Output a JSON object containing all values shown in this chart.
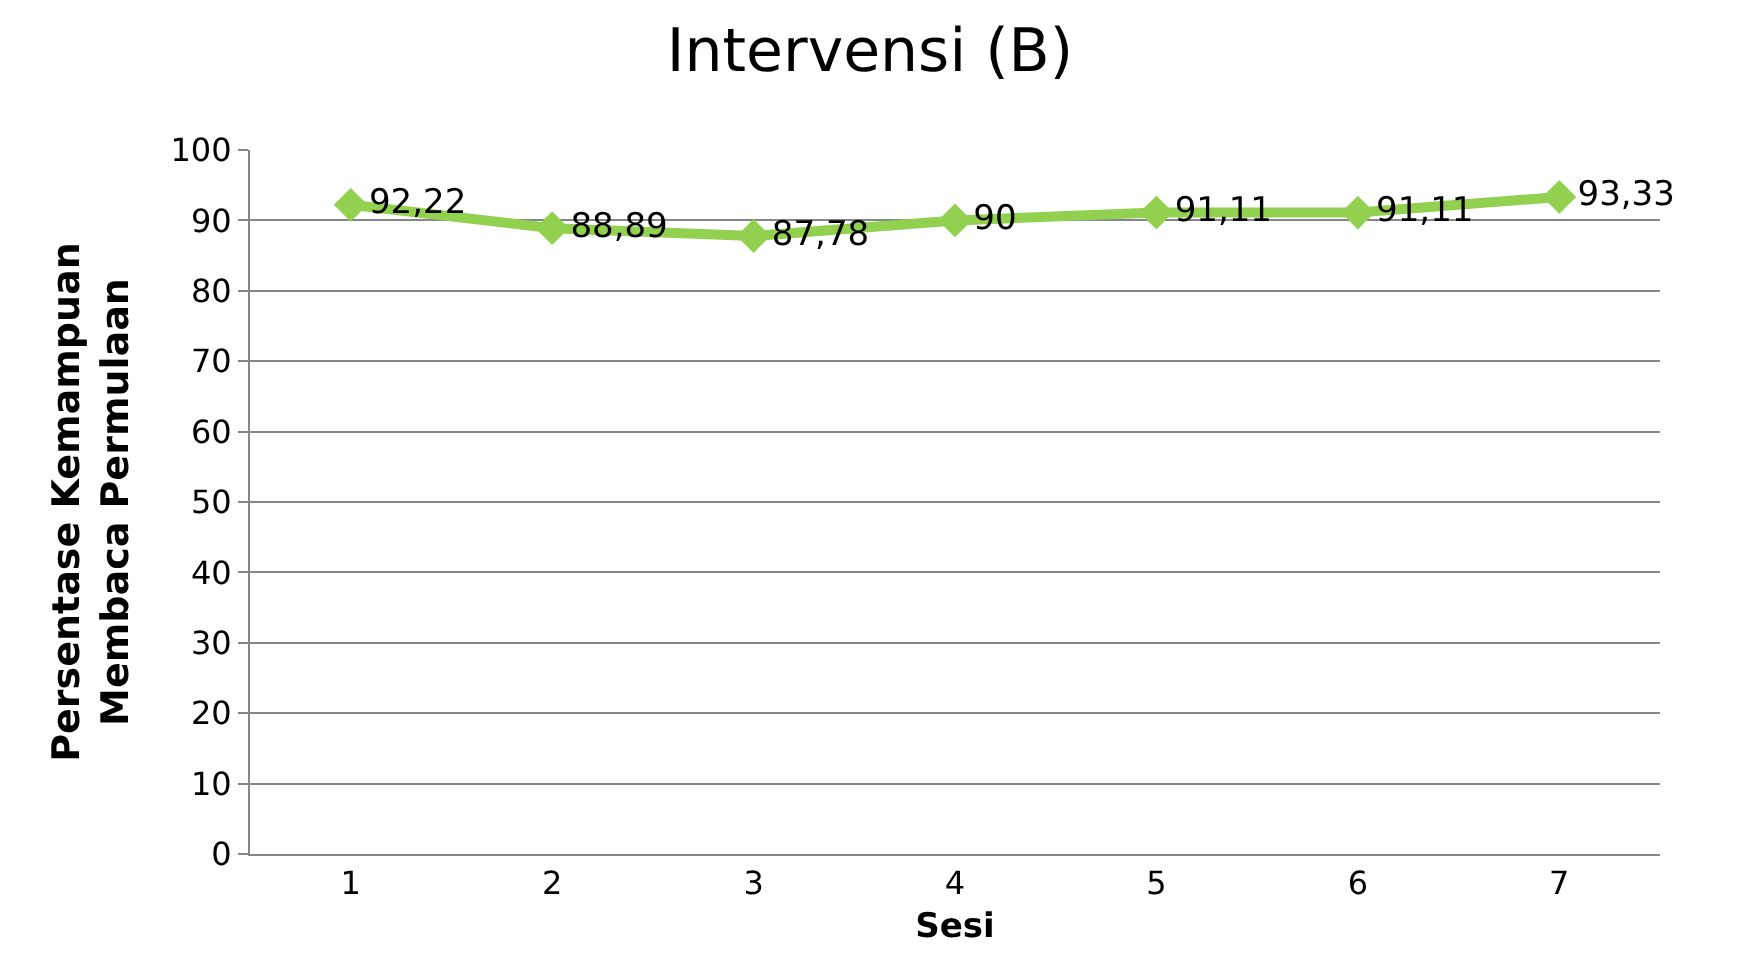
{
  "chart_data": {
    "type": "line",
    "title": "Intervensi (B)",
    "xlabel": "Sesi",
    "ylabel": "Persentase Kemampuan\nMembaca Permulaan",
    "categories": [
      "1",
      "2",
      "3",
      "4",
      "5",
      "6",
      "7"
    ],
    "series": [
      {
        "color": "#92d050",
        "values": [
          92.22,
          88.89,
          87.78,
          90,
          91.11,
          91.11,
          93.33
        ],
        "value_labels": [
          "92,22",
          "88,89",
          "87,78",
          "90",
          "91,11",
          "91,11",
          "93,33"
        ]
      }
    ],
    "ylim": [
      0,
      100
    ],
    "yticks": [
      0,
      10,
      20,
      30,
      40,
      50,
      60,
      70,
      80,
      90,
      100
    ],
    "grid": "y",
    "marker": "diamond",
    "line_style": "solid"
  }
}
